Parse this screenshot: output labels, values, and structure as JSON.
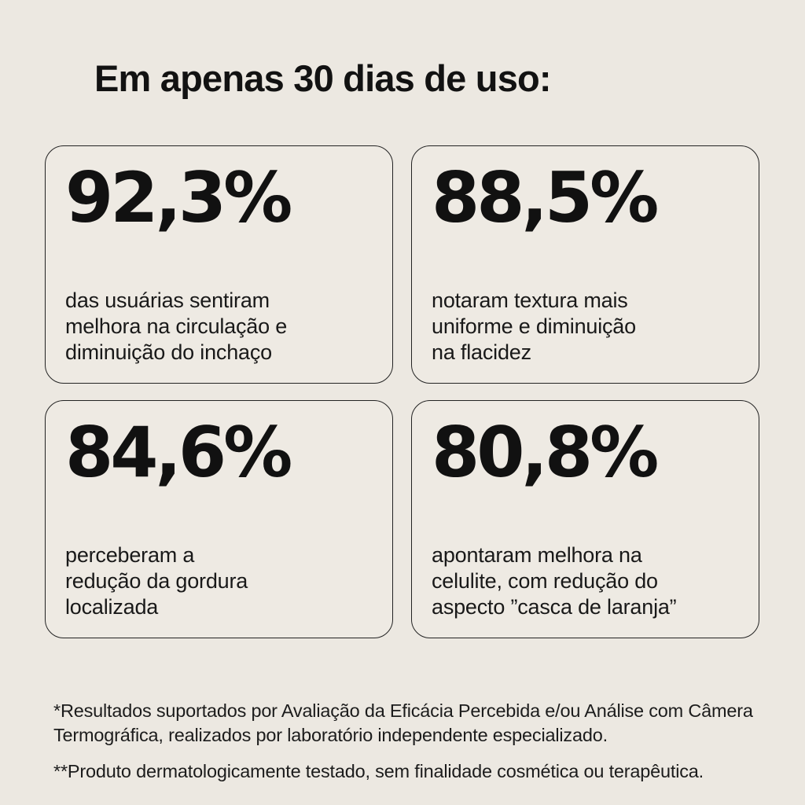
{
  "page": {
    "background_color": "#ECE8E1",
    "card_background_color": "#EEEAE3",
    "card_border_color": "#232323",
    "text_color": "#141414"
  },
  "title": "Em apenas 30 dias de uso:",
  "cards": [
    {
      "value": "92,3%",
      "lines": [
        "das usuárias sentiram",
        "melhora na circulação e",
        "diminuição do inchaço"
      ]
    },
    {
      "value": "88,5%",
      "lines": [
        "notaram textura mais",
        "uniforme e diminuição",
        "na flacidez"
      ]
    },
    {
      "value": "84,6%",
      "lines": [
        "perceberam a",
        "redução da gordura",
        "localizada"
      ]
    },
    {
      "value": "80,8%",
      "lines": [
        "apontaram melhora na",
        "celulite, com redução do",
        "aspecto ”casca de laranja”"
      ]
    }
  ],
  "footnotes": [
    {
      "lines": [
        "*Resultados suportados por Avaliação da Eficácia Percebida e/ou Análise com Câmera",
        "Termográfica, realizados por laboratório independente especializado."
      ]
    },
    {
      "lines": [
        "**Produto dermatologicamente testado, sem finalidade cosmética ou terapêutica."
      ]
    }
  ]
}
